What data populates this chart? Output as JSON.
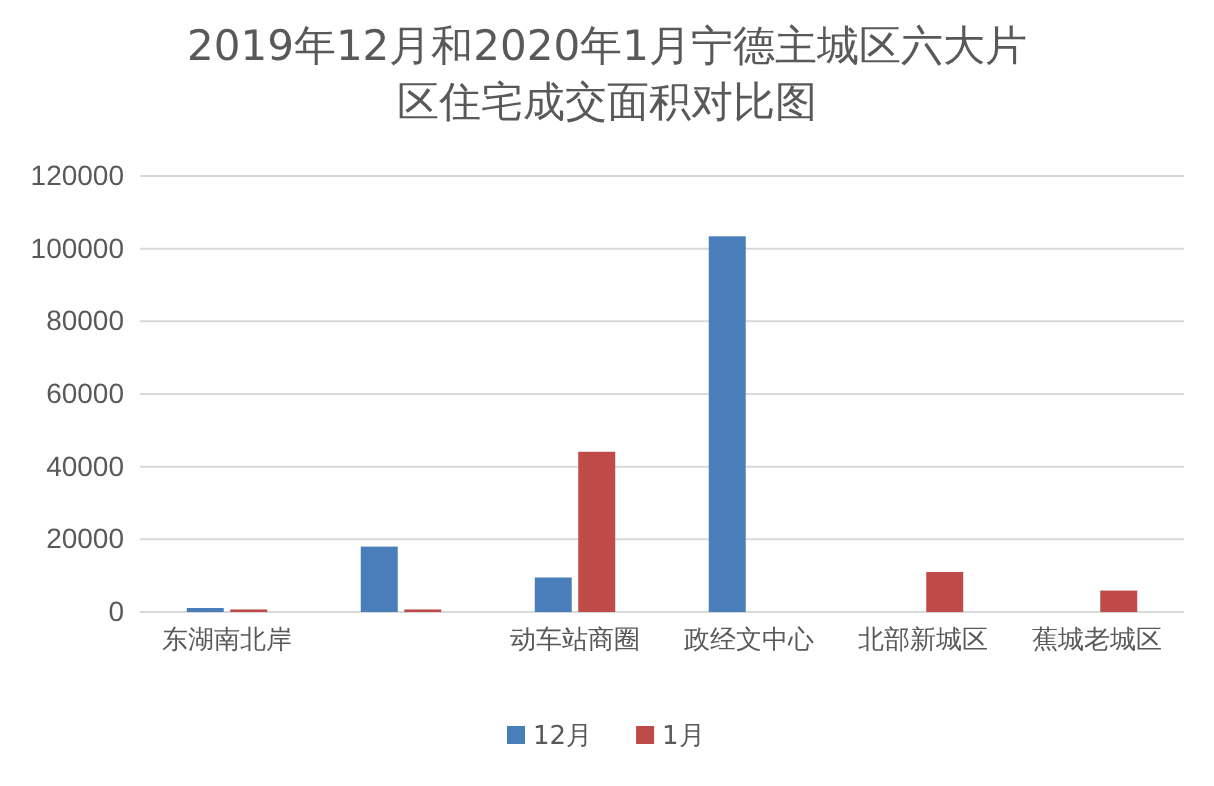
{
  "chart_data": {
    "type": "bar",
    "title": "2019年12月和2020年1月宁德主城区六大片区住宅成交面积对比图",
    "categories": [
      "东湖南北岸",
      null,
      "动车站商圈",
      "政经文中心",
      "北部新城区",
      "蕉城老城区"
    ],
    "series": [
      {
        "name": "12月",
        "color": "#4a7ebb",
        "values": [
          1100,
          18000,
          9500,
          103400,
          0,
          0
        ]
      },
      {
        "name": "1月",
        "color": "#be4b48",
        "values": [
          700,
          700,
          44100,
          0,
          11000,
          5900
        ]
      }
    ],
    "ylim": [
      0,
      120000
    ],
    "yticks": [
      0,
      20000,
      40000,
      60000,
      80000,
      100000,
      120000
    ],
    "grid": "y",
    "legend": "bottom"
  }
}
